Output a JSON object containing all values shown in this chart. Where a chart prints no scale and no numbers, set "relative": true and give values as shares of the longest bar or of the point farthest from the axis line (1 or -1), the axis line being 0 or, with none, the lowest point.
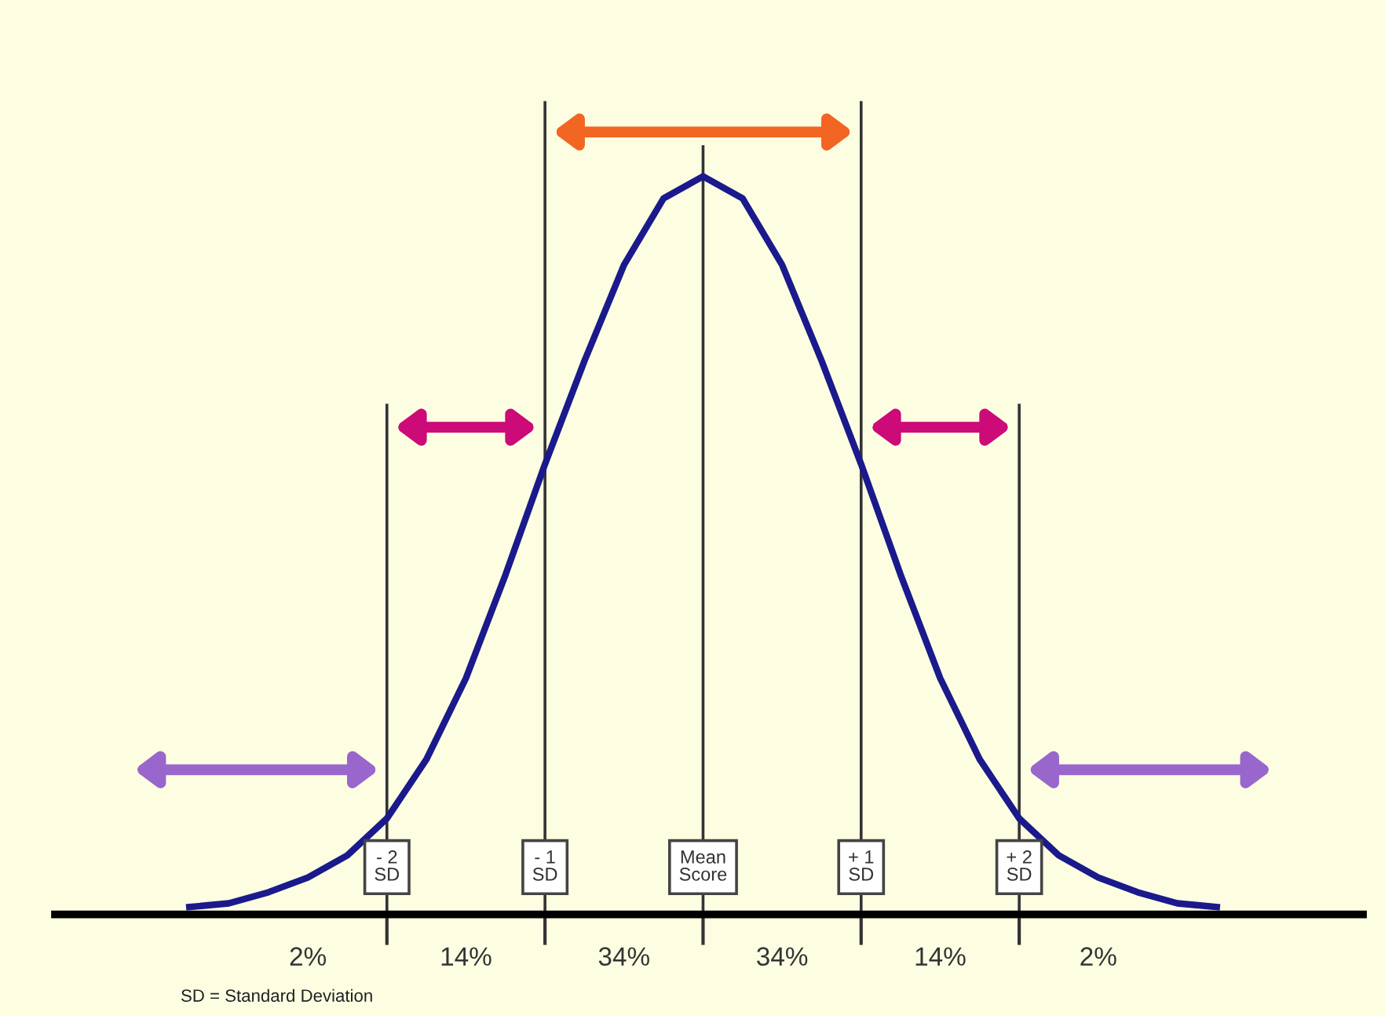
{
  "chart_data": {
    "type": "line",
    "relative": true,
    "tick_labels": "x",
    "grid": "x",
    "marker": "none",
    "line_style": "solid",
    "categories": [
      null,
      null,
      null,
      null,
      null,
      "- 2\nSD",
      null,
      null,
      null,
      "- 1\nSD",
      null,
      null,
      null,
      "Mean\nScore",
      null,
      null,
      null,
      "+ 1\nSD",
      null,
      null,
      null,
      "+ 2\nSD",
      null,
      null,
      null,
      null,
      null
    ],
    "series": [
      {
        "color": "#1a1a8c",
        "values": [
          0.01,
          0.015,
          0.03,
          0.05,
          0.08,
          0.13,
          0.21,
          0.32,
          0.46,
          0.61,
          0.75,
          0.88,
          0.97,
          1.0,
          0.97,
          0.88,
          0.75,
          0.61,
          0.46,
          0.32,
          0.21,
          0.13,
          0.08,
          0.05,
          0.03,
          0.015,
          0.01
        ]
      }
    ],
    "annotations": [
      "2%",
      "14%",
      "34%",
      "34%",
      "14%",
      "2%",
      "SD = Standard Deviation"
    ]
  }
}
